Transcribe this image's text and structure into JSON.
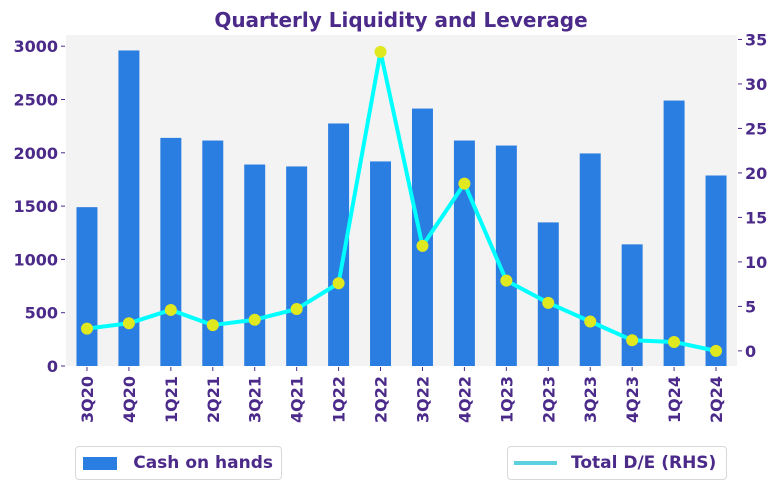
{
  "chart_data": {
    "type": "bar",
    "title": "Quarterly Liquidity and Leverage",
    "xlabel": "",
    "ylabel": "",
    "categories": [
      "3Q20",
      "4Q20",
      "1Q21",
      "2Q21",
      "3Q21",
      "4Q21",
      "1Q22",
      "2Q22",
      "3Q22",
      "4Q22",
      "1Q23",
      "2Q23",
      "3Q23",
      "4Q23",
      "1Q24",
      "2Q24"
    ],
    "series": [
      {
        "name": "Cash on hands",
        "type": "bar",
        "axis": "left",
        "color": "#2A7DE1",
        "values": [
          1490,
          2960,
          2140,
          2115,
          1890,
          1872,
          2275,
          1919,
          2415,
          2115,
          2068,
          1347,
          1994,
          1141,
          2490,
          1787
        ]
      },
      {
        "name": "Total D/E (RHS)",
        "type": "line",
        "axis": "right",
        "color": "#00FFFF",
        "legend_color": "#5CD0DE",
        "marker_color": "#E0E81F",
        "values": [
          2.5,
          3.1,
          4.6,
          2.9,
          3.5,
          4.7,
          7.6,
          33.6,
          11.8,
          18.8,
          7.9,
          5.4,
          3.3,
          1.2,
          1.0,
          0.0
        ]
      }
    ],
    "left_axis": {
      "ylim": [
        0,
        3105
      ],
      "ticks": [
        0,
        500,
        1000,
        1500,
        2000,
        2500,
        3000
      ]
    },
    "right_axis": {
      "ylim": [
        -1.7,
        35.5
      ],
      "ticks": [
        0,
        5,
        10,
        15,
        20,
        25,
        30,
        35
      ]
    },
    "grid": false,
    "background": "#F3F3F3",
    "text_color": "#4B2A8A",
    "legend": [
      {
        "label": "Cash on hands",
        "placement": "bottom-left"
      },
      {
        "label": "Total D/E (RHS)",
        "placement": "bottom-right"
      }
    ]
  }
}
